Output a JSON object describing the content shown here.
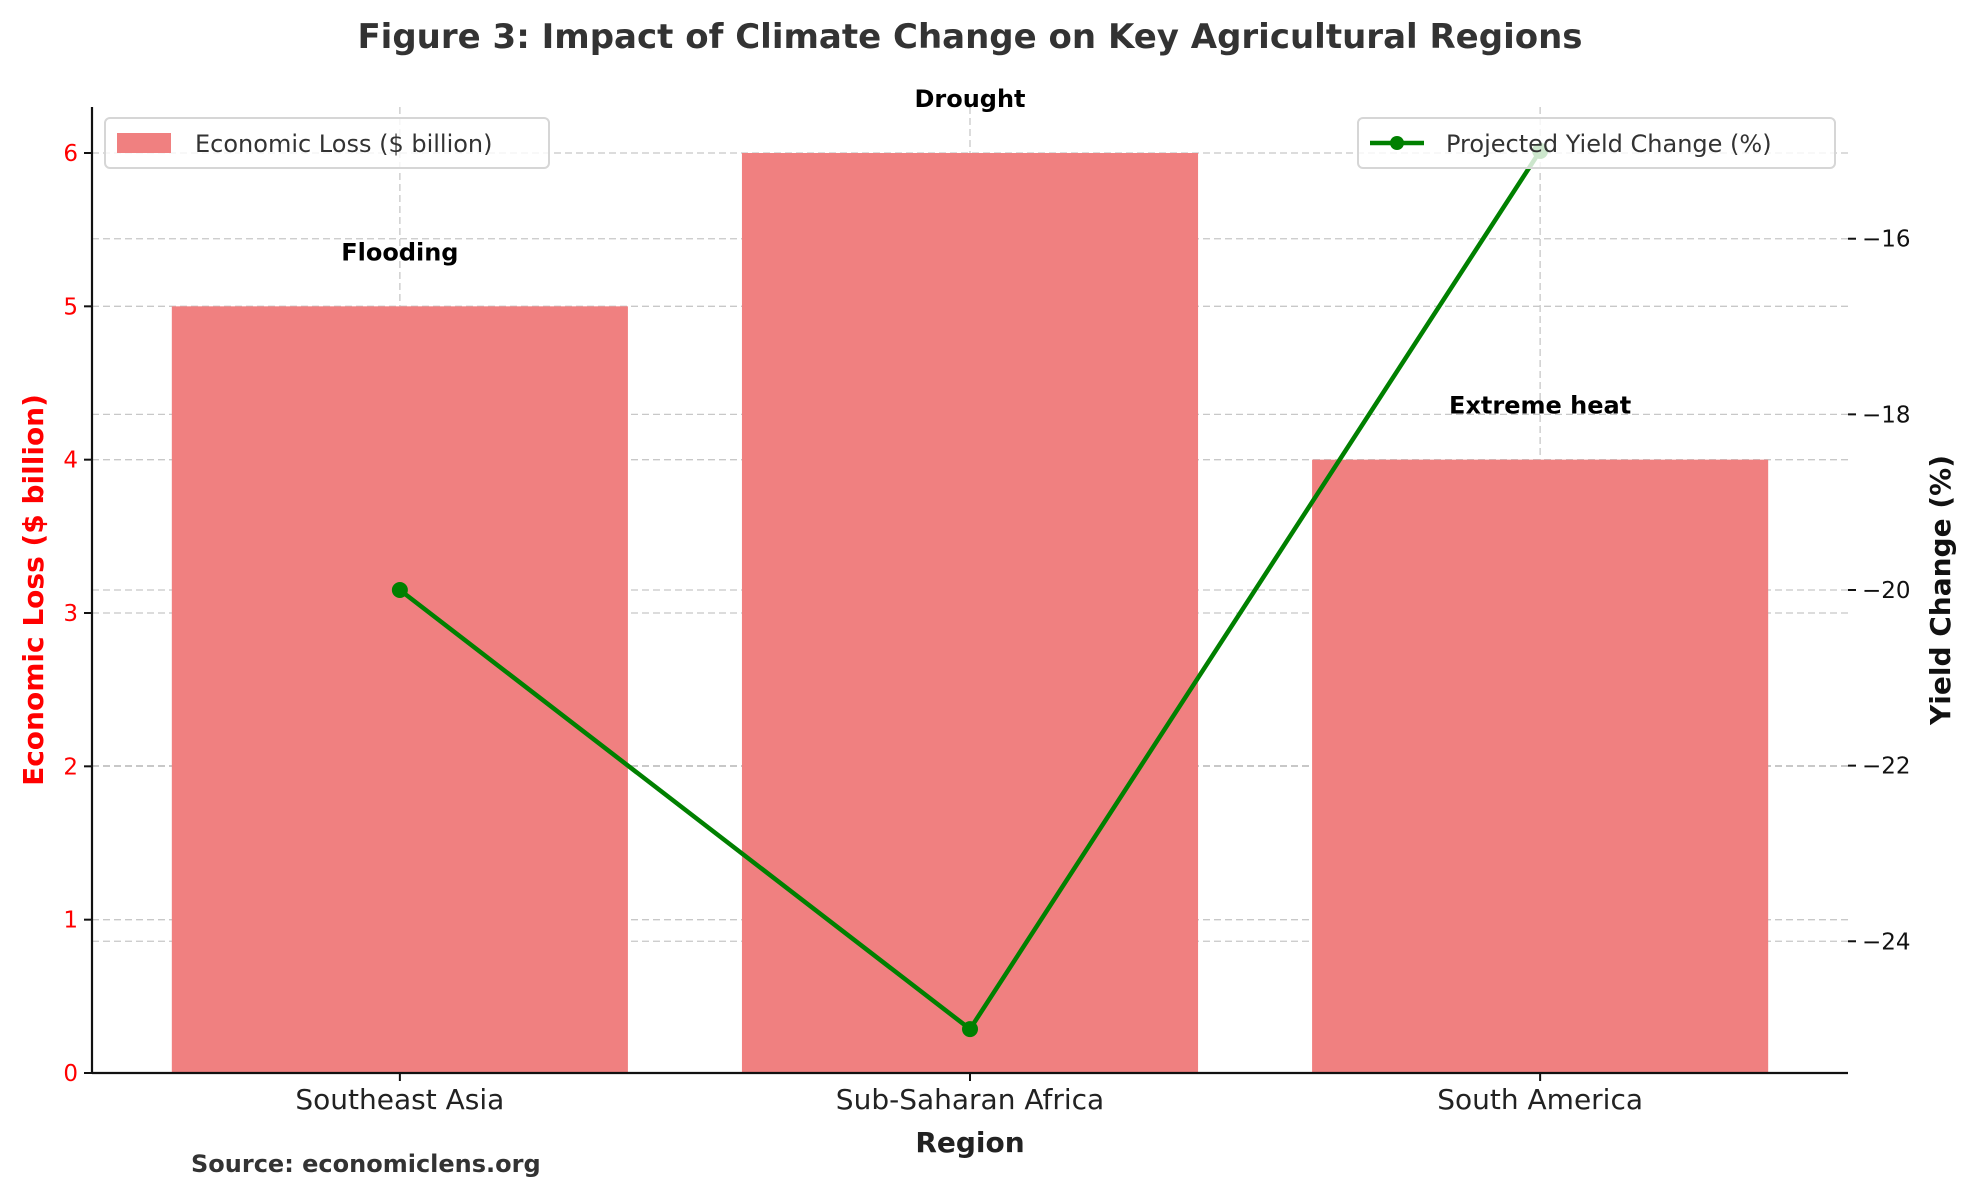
{
  "chart_data": {
    "type": "bar+line",
    "title": "Figure 3: Impact of Climate Change on Key Agricultural Regions",
    "xlabel": "Region",
    "ylabel_left": "Economic Loss ($ billion)",
    "ylabel_right": "Yield Change (%)",
    "categories": [
      "Southeast Asia",
      "Sub-Saharan Africa",
      "South America"
    ],
    "series": [
      {
        "name": "Economic Loss ($ billion)",
        "type": "bar",
        "axis": "left",
        "values": [
          5,
          6,
          4
        ],
        "color": "#f08080"
      },
      {
        "name": "Projected Yield Change (%)",
        "type": "line",
        "axis": "right",
        "values": [
          -20,
          -25,
          -15
        ],
        "color": "#008000",
        "marker": "circle"
      }
    ],
    "annotations": [
      "Flooding",
      "Drought",
      "Extreme heat"
    ],
    "ylim_left": [
      0,
      6.3
    ],
    "ylim_right": [
      -25.5,
      -14.5
    ],
    "yticks_left": [
      "0",
      "1",
      "2",
      "3",
      "4",
      "5",
      "6"
    ],
    "yticks_right": [
      "−24",
      "−22",
      "−20",
      "−18",
      "−16"
    ],
    "left_axis_color": "#ff0000",
    "grid": true,
    "legend_bar_placement": "upper-left",
    "legend_line_placement": "upper-right",
    "source": "Source: economiclens.org"
  }
}
